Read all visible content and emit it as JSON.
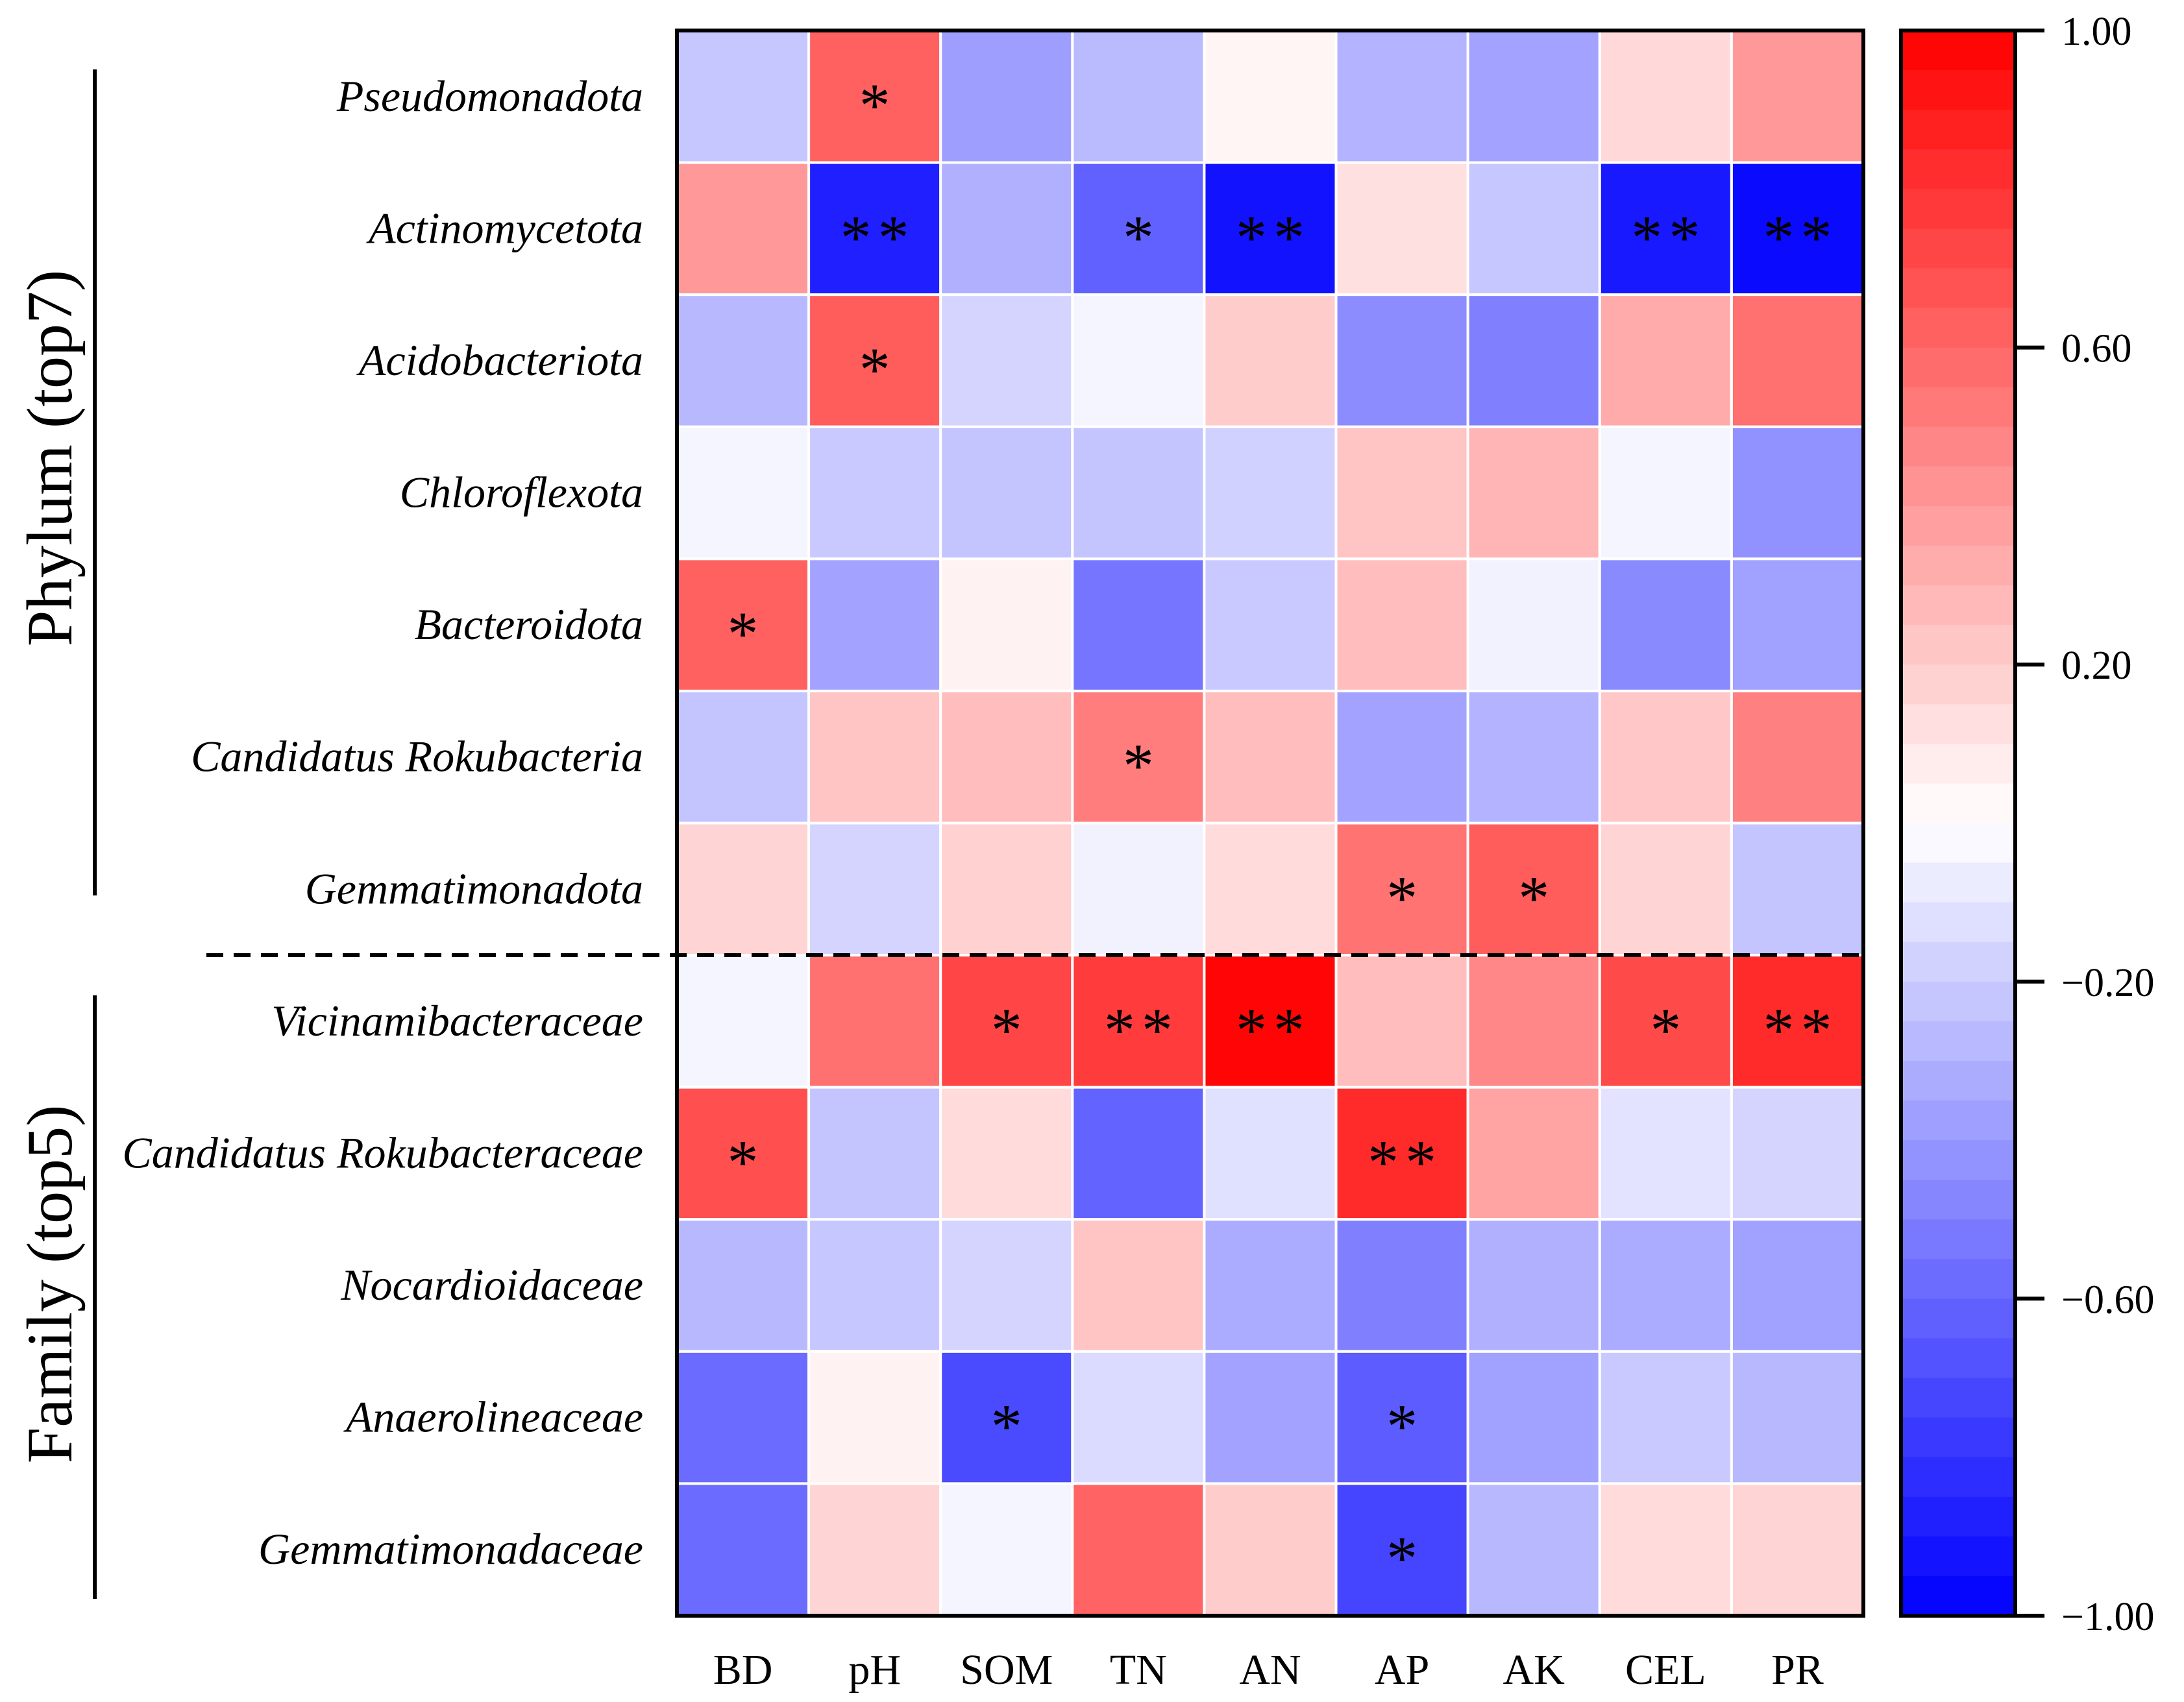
{
  "chart_data": {
    "type": "heatmap",
    "title": "",
    "rows": [
      "Pseudomonadota",
      "Actinomycetota",
      "Acidobacteriota",
      "Chloroflexota",
      "Bacteroidota",
      "Candidatus Rokubacteria",
      "Gemmatimonadota",
      "Vicinamibacteraceae",
      "Candidatus Rokubacteraceae",
      "Nocardioidaceae",
      "Anaerolineaceae",
      "Gemmatimonadaceae"
    ],
    "columns": [
      "BD",
      "pH",
      "SOM",
      "TN",
      "AN",
      "AP",
      "AK",
      "CEL",
      "PR"
    ],
    "row_groups": [
      {
        "label": "Phylum (top7)",
        "rows": 7
      },
      {
        "label": "Family (top5)",
        "rows": 5
      }
    ],
    "values": [
      [
        -0.22,
        0.62,
        -0.38,
        -0.27,
        0.04,
        -0.3,
        -0.36,
        0.15,
        0.4
      ],
      [
        0.4,
        -0.88,
        -0.31,
        -0.62,
        -0.93,
        0.12,
        -0.22,
        -0.9,
        -0.96
      ],
      [
        -0.28,
        0.64,
        -0.17,
        -0.04,
        0.2,
        -0.45,
        -0.5,
        0.33,
        0.56
      ],
      [
        -0.04,
        -0.21,
        -0.23,
        -0.23,
        -0.18,
        0.23,
        0.29,
        -0.04,
        -0.43
      ],
      [
        0.62,
        -0.36,
        0.05,
        -0.54,
        -0.21,
        0.26,
        -0.05,
        -0.46,
        -0.37
      ],
      [
        -0.23,
        0.23,
        0.26,
        0.51,
        0.26,
        -0.36,
        -0.3,
        0.22,
        0.5
      ],
      [
        0.17,
        -0.17,
        0.18,
        -0.05,
        0.14,
        0.55,
        0.64,
        0.17,
        -0.23
      ],
      [
        -0.04,
        0.56,
        0.73,
        0.77,
        0.98,
        0.26,
        0.47,
        0.71,
        0.83
      ],
      [
        0.69,
        -0.23,
        0.14,
        -0.61,
        -0.12,
        0.83,
        0.36,
        -0.11,
        -0.17
      ],
      [
        -0.28,
        -0.22,
        -0.17,
        0.23,
        -0.33,
        -0.5,
        -0.31,
        -0.33,
        -0.37
      ],
      [
        -0.58,
        0.05,
        -0.71,
        -0.14,
        -0.36,
        -0.64,
        -0.37,
        -0.21,
        -0.28
      ],
      [
        -0.58,
        0.17,
        -0.04,
        0.61,
        0.2,
        -0.73,
        -0.28,
        0.14,
        0.17
      ]
    ],
    "significance": [
      [
        "",
        "*",
        "",
        "",
        "",
        "",
        "",
        "",
        ""
      ],
      [
        "",
        "**",
        "",
        "*",
        "**",
        "",
        "",
        "**",
        "**"
      ],
      [
        "",
        "*",
        "",
        "",
        "",
        "",
        "",
        "",
        ""
      ],
      [
        "",
        "",
        "",
        "",
        "",
        "",
        "",
        "",
        ""
      ],
      [
        "*",
        "",
        "",
        "",
        "",
        "",
        "",
        "",
        ""
      ],
      [
        "",
        "",
        "",
        "*",
        "",
        "",
        "",
        "",
        ""
      ],
      [
        "",
        "",
        "",
        "",
        "",
        "*",
        "*",
        "",
        ""
      ],
      [
        "",
        "",
        "*",
        "**",
        "**",
        "",
        "",
        "*",
        "**"
      ],
      [
        "*",
        "",
        "",
        "",
        "",
        "**",
        "",
        "",
        ""
      ],
      [
        "",
        "",
        "",
        "",
        "",
        "",
        "",
        "",
        ""
      ],
      [
        "",
        "",
        "*",
        "",
        "",
        "*",
        "",
        "",
        ""
      ],
      [
        "",
        "",
        "",
        "",
        "",
        "*",
        "",
        "",
        ""
      ]
    ],
    "colorbar": {
      "range": [
        -1,
        1
      ],
      "ticks": [
        1.0,
        0.6,
        0.2,
        -0.2,
        -0.6,
        -1.0
      ],
      "tick_labels": [
        "1.00",
        "0.60",
        "0.20",
        "−0.20",
        "−0.60",
        "−1.00"
      ],
      "bands": 40,
      "position": "right"
    },
    "colors": {
      "positive": "#ff0000",
      "zero": "#ffffff",
      "negative": "#0000ff",
      "grid": "#ffffff",
      "border": "#000000"
    }
  }
}
